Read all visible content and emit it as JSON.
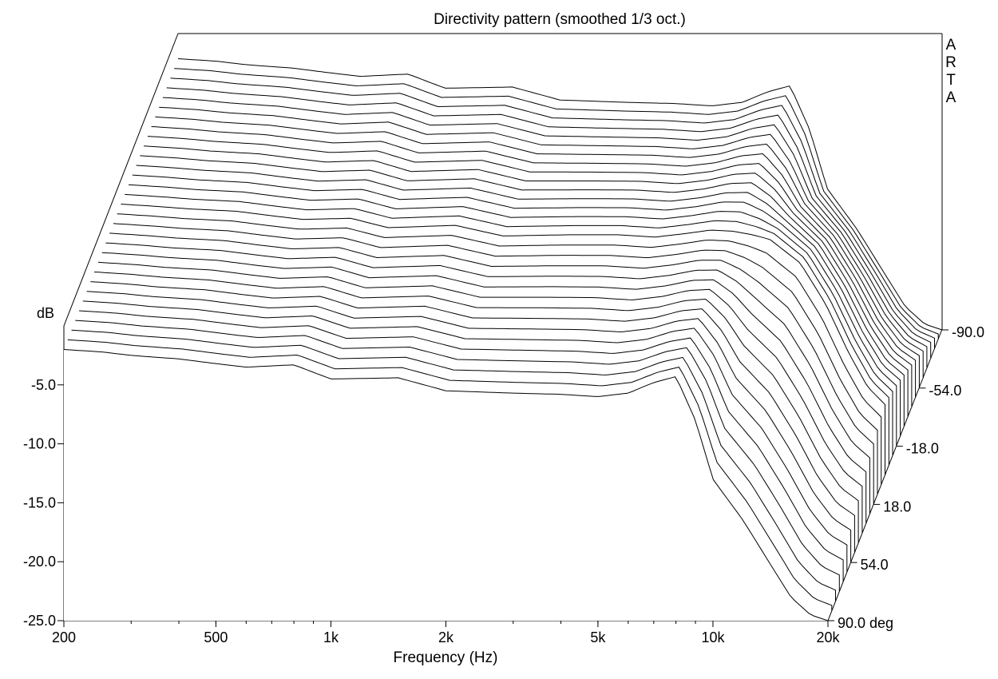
{
  "chart_data": {
    "type": "line",
    "view": "3D waterfall",
    "title": "Directivity pattern (smoothed 1/3 oct.)",
    "xlabel": "Frequency (Hz)",
    "ylabel": "dB",
    "zlabel": "90.0 deg",
    "watermark": "ARTA",
    "x_scale": "log",
    "xlim": [
      200,
      20000
    ],
    "ylim": [
      -25,
      0
    ],
    "zlim": [
      90,
      -90
    ],
    "x_ticks": [
      200,
      500,
      1000,
      2000,
      5000,
      10000,
      20000
    ],
    "x_tick_labels": [
      "200",
      "500",
      "1k",
      "2k",
      "5k",
      "10k",
      "20k"
    ],
    "y_ticks": [
      -5,
      -10,
      -15,
      -20,
      -25
    ],
    "y_tick_labels": [
      "-5.0",
      "-10.0",
      "-15.0",
      "-20.0",
      "-25.0"
    ],
    "z_ticks": [
      90,
      54,
      18,
      -18,
      -54,
      -90
    ],
    "z_tick_labels": [
      "90.0 deg",
      "54.0",
      "18.0",
      "-18.0",
      "-54.0",
      "-90.0"
    ],
    "angle_step_deg": 6,
    "frequencies": [
      200,
      250,
      300,
      400,
      500,
      600,
      800,
      1000,
      1500,
      2000,
      3000,
      4000,
      5000,
      6000,
      7000,
      8000,
      9000,
      10000,
      12000,
      14000,
      16000,
      18000,
      20000
    ],
    "series": [
      {
        "angle": 90,
        "values": [
          -2.0,
          -2.2,
          -2.5,
          -2.8,
          -3.2,
          -3.5,
          -3.3,
          -4.5,
          -4.4,
          -5.5,
          -5.7,
          -5.8,
          -6.0,
          -5.7,
          -4.8,
          -4.3,
          -8.0,
          -13.0,
          -16.5,
          -20.0,
          -23.0,
          -24.5,
          -25.0
        ]
      },
      {
        "angle": 0,
        "values": [
          -2.0,
          -2.2,
          -2.4,
          -2.6,
          -3.0,
          -3.3,
          -3.2,
          -4.0,
          -3.8,
          -4.7,
          -4.6,
          -4.6,
          -4.8,
          -4.5,
          -4.2,
          -4.3,
          -4.6,
          -5.0,
          -7.0,
          -10.5,
          -14.5,
          -17.5,
          -19.0
        ]
      },
      {
        "angle": -90,
        "values": [
          -2.0,
          -2.2,
          -2.5,
          -2.8,
          -3.2,
          -3.5,
          -3.3,
          -4.5,
          -4.4,
          -5.5,
          -5.7,
          -5.8,
          -6.0,
          -5.7,
          -4.8,
          -4.3,
          -8.0,
          -13.0,
          -16.5,
          -20.0,
          -23.0,
          -24.5,
          -25.0
        ]
      }
    ]
  }
}
